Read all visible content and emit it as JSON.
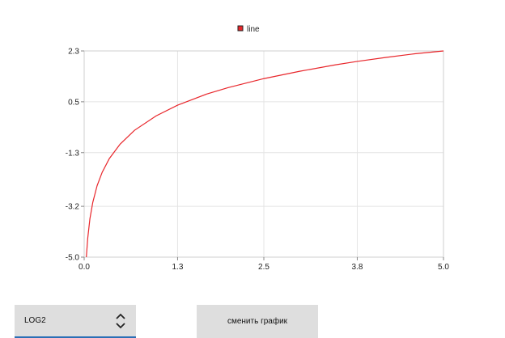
{
  "chart_data": {
    "type": "line",
    "title": "",
    "xlabel": "",
    "ylabel": "",
    "xlim": [
      0.0,
      5.0
    ],
    "ylim": [
      -5.0,
      2.3
    ],
    "x_ticks": [
      "0.0",
      "1.3",
      "2.5",
      "3.8",
      "5.0"
    ],
    "y_ticks": [
      "2.3",
      "0.5",
      "-1.3",
      "-3.2",
      "-5.0"
    ],
    "grid": true,
    "legend_position": "top-center",
    "series": [
      {
        "name": "line",
        "color": "#e8262b",
        "function": "log2(x)",
        "x": [
          0.03,
          0.05,
          0.08,
          0.12,
          0.18,
          0.25,
          0.35,
          0.5,
          0.7,
          1.0,
          1.3,
          1.7,
          2.0,
          2.5,
          3.0,
          3.5,
          3.8,
          4.2,
          4.6,
          5.0
        ],
        "y": [
          -5.06,
          -4.32,
          -3.64,
          -3.06,
          -2.47,
          -2.0,
          -1.51,
          -1.0,
          -0.51,
          0.0,
          0.38,
          0.77,
          1.0,
          1.32,
          1.58,
          1.81,
          1.93,
          2.07,
          2.2,
          2.32
        ]
      }
    ]
  },
  "controls": {
    "function_select": {
      "value": "LOG2"
    },
    "change_button": {
      "label": "сменить график"
    }
  },
  "colors": {
    "line": "#e8262b",
    "grid": "#e4e4e4",
    "control_bg": "#dedede",
    "accent": "#2a6fb5"
  },
  "icons": {
    "select_arrows": "chevron-up-down-icon"
  }
}
